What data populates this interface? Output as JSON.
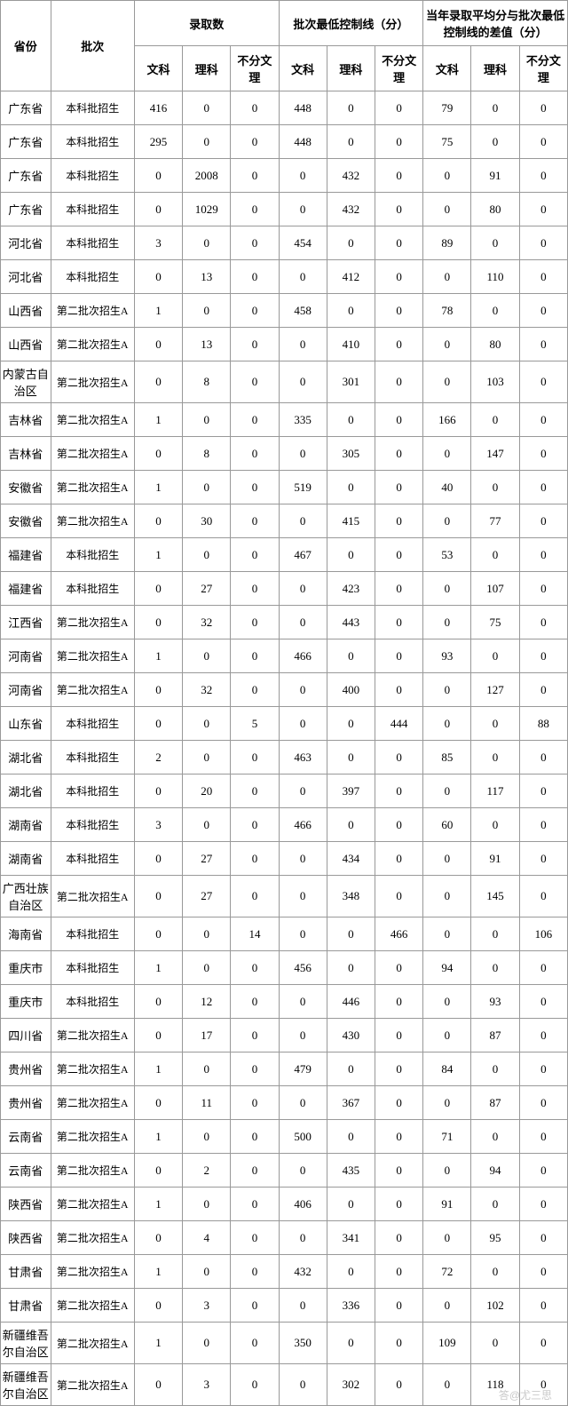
{
  "header": {
    "province": "省份",
    "batch": "批次",
    "group1": "录取数",
    "group2": "批次最低控制线（分）",
    "group3": "当年录取平均分与批次最低控制线的差值（分）",
    "wen": "文科",
    "li": "理科",
    "none": "不分文理"
  },
  "watermark": "答@尤三思",
  "rows": [
    {
      "p": "广东省",
      "b": "本科批招生",
      "v": [
        "416",
        "0",
        "0",
        "448",
        "0",
        "0",
        "79",
        "0",
        "0"
      ]
    },
    {
      "p": "广东省",
      "b": "本科批招生",
      "v": [
        "295",
        "0",
        "0",
        "448",
        "0",
        "0",
        "75",
        "0",
        "0"
      ]
    },
    {
      "p": "广东省",
      "b": "本科批招生",
      "v": [
        "0",
        "2008",
        "0",
        "0",
        "432",
        "0",
        "0",
        "91",
        "0"
      ]
    },
    {
      "p": "广东省",
      "b": "本科批招生",
      "v": [
        "0",
        "1029",
        "0",
        "0",
        "432",
        "0",
        "0",
        "80",
        "0"
      ]
    },
    {
      "p": "河北省",
      "b": "本科批招生",
      "v": [
        "3",
        "0",
        "0",
        "454",
        "0",
        "0",
        "89",
        "0",
        "0"
      ]
    },
    {
      "p": "河北省",
      "b": "本科批招生",
      "v": [
        "0",
        "13",
        "0",
        "0",
        "412",
        "0",
        "0",
        "110",
        "0"
      ]
    },
    {
      "p": "山西省",
      "b": "第二批次招生A",
      "v": [
        "1",
        "0",
        "0",
        "458",
        "0",
        "0",
        "78",
        "0",
        "0"
      ]
    },
    {
      "p": "山西省",
      "b": "第二批次招生A",
      "v": [
        "0",
        "13",
        "0",
        "0",
        "410",
        "0",
        "0",
        "80",
        "0"
      ]
    },
    {
      "p": "内蒙古自治区",
      "b": "第二批次招生A",
      "v": [
        "0",
        "8",
        "0",
        "0",
        "301",
        "0",
        "0",
        "103",
        "0"
      ]
    },
    {
      "p": "吉林省",
      "b": "第二批次招生A",
      "v": [
        "1",
        "0",
        "0",
        "335",
        "0",
        "0",
        "166",
        "0",
        "0"
      ]
    },
    {
      "p": "吉林省",
      "b": "第二批次招生A",
      "v": [
        "0",
        "8",
        "0",
        "0",
        "305",
        "0",
        "0",
        "147",
        "0"
      ]
    },
    {
      "p": "安徽省",
      "b": "第二批次招生A",
      "v": [
        "1",
        "0",
        "0",
        "519",
        "0",
        "0",
        "40",
        "0",
        "0"
      ]
    },
    {
      "p": "安徽省",
      "b": "第二批次招生A",
      "v": [
        "0",
        "30",
        "0",
        "0",
        "415",
        "0",
        "0",
        "77",
        "0"
      ]
    },
    {
      "p": "福建省",
      "b": "本科批招生",
      "v": [
        "1",
        "0",
        "0",
        "467",
        "0",
        "0",
        "53",
        "0",
        "0"
      ]
    },
    {
      "p": "福建省",
      "b": "本科批招生",
      "v": [
        "0",
        "27",
        "0",
        "0",
        "423",
        "0",
        "0",
        "107",
        "0"
      ]
    },
    {
      "p": "江西省",
      "b": "第二批次招生A",
      "v": [
        "0",
        "32",
        "0",
        "0",
        "443",
        "0",
        "0",
        "75",
        "0"
      ]
    },
    {
      "p": "河南省",
      "b": "第二批次招生A",
      "v": [
        "1",
        "0",
        "0",
        "466",
        "0",
        "0",
        "93",
        "0",
        "0"
      ]
    },
    {
      "p": "河南省",
      "b": "第二批次招生A",
      "v": [
        "0",
        "32",
        "0",
        "0",
        "400",
        "0",
        "0",
        "127",
        "0"
      ]
    },
    {
      "p": "山东省",
      "b": "本科批招生",
      "v": [
        "0",
        "0",
        "5",
        "0",
        "0",
        "444",
        "0",
        "0",
        "88"
      ]
    },
    {
      "p": "湖北省",
      "b": "本科批招生",
      "v": [
        "2",
        "0",
        "0",
        "463",
        "0",
        "0",
        "85",
        "0",
        "0"
      ]
    },
    {
      "p": "湖北省",
      "b": "本科批招生",
      "v": [
        "0",
        "20",
        "0",
        "0",
        "397",
        "0",
        "0",
        "117",
        "0"
      ]
    },
    {
      "p": "湖南省",
      "b": "本科批招生",
      "v": [
        "3",
        "0",
        "0",
        "466",
        "0",
        "0",
        "60",
        "0",
        "0"
      ]
    },
    {
      "p": "湖南省",
      "b": "本科批招生",
      "v": [
        "0",
        "27",
        "0",
        "0",
        "434",
        "0",
        "0",
        "91",
        "0"
      ]
    },
    {
      "p": "广西壮族自治区",
      "b": "第二批次招生A",
      "v": [
        "0",
        "27",
        "0",
        "0",
        "348",
        "0",
        "0",
        "145",
        "0"
      ]
    },
    {
      "p": "海南省",
      "b": "本科批招生",
      "v": [
        "0",
        "0",
        "14",
        "0",
        "0",
        "466",
        "0",
        "0",
        "106"
      ]
    },
    {
      "p": "重庆市",
      "b": "本科批招生",
      "v": [
        "1",
        "0",
        "0",
        "456",
        "0",
        "0",
        "94",
        "0",
        "0"
      ]
    },
    {
      "p": "重庆市",
      "b": "本科批招生",
      "v": [
        "0",
        "12",
        "0",
        "0",
        "446",
        "0",
        "0",
        "93",
        "0"
      ]
    },
    {
      "p": "四川省",
      "b": "第二批次招生A",
      "v": [
        "0",
        "17",
        "0",
        "0",
        "430",
        "0",
        "0",
        "87",
        "0"
      ]
    },
    {
      "p": "贵州省",
      "b": "第二批次招生A",
      "v": [
        "1",
        "0",
        "0",
        "479",
        "0",
        "0",
        "84",
        "0",
        "0"
      ]
    },
    {
      "p": "贵州省",
      "b": "第二批次招生A",
      "v": [
        "0",
        "11",
        "0",
        "0",
        "367",
        "0",
        "0",
        "87",
        "0"
      ]
    },
    {
      "p": "云南省",
      "b": "第二批次招生A",
      "v": [
        "1",
        "0",
        "0",
        "500",
        "0",
        "0",
        "71",
        "0",
        "0"
      ]
    },
    {
      "p": "云南省",
      "b": "第二批次招生A",
      "v": [
        "0",
        "2",
        "0",
        "0",
        "435",
        "0",
        "0",
        "94",
        "0"
      ]
    },
    {
      "p": "陕西省",
      "b": "第二批次招生A",
      "v": [
        "1",
        "0",
        "0",
        "406",
        "0",
        "0",
        "91",
        "0",
        "0"
      ]
    },
    {
      "p": "陕西省",
      "b": "第二批次招生A",
      "v": [
        "0",
        "4",
        "0",
        "0",
        "341",
        "0",
        "0",
        "95",
        "0"
      ]
    },
    {
      "p": "甘肃省",
      "b": "第二批次招生A",
      "v": [
        "1",
        "0",
        "0",
        "432",
        "0",
        "0",
        "72",
        "0",
        "0"
      ]
    },
    {
      "p": "甘肃省",
      "b": "第二批次招生A",
      "v": [
        "0",
        "3",
        "0",
        "0",
        "336",
        "0",
        "0",
        "102",
        "0"
      ]
    },
    {
      "p": "新疆维吾尔自治区",
      "b": "第二批次招生A",
      "v": [
        "1",
        "0",
        "0",
        "350",
        "0",
        "0",
        "109",
        "0",
        "0"
      ]
    },
    {
      "p": "新疆维吾尔自治区",
      "b": "第二批次招生A",
      "v": [
        "0",
        "3",
        "0",
        "0",
        "302",
        "0",
        "0",
        "118",
        "0"
      ]
    }
  ]
}
